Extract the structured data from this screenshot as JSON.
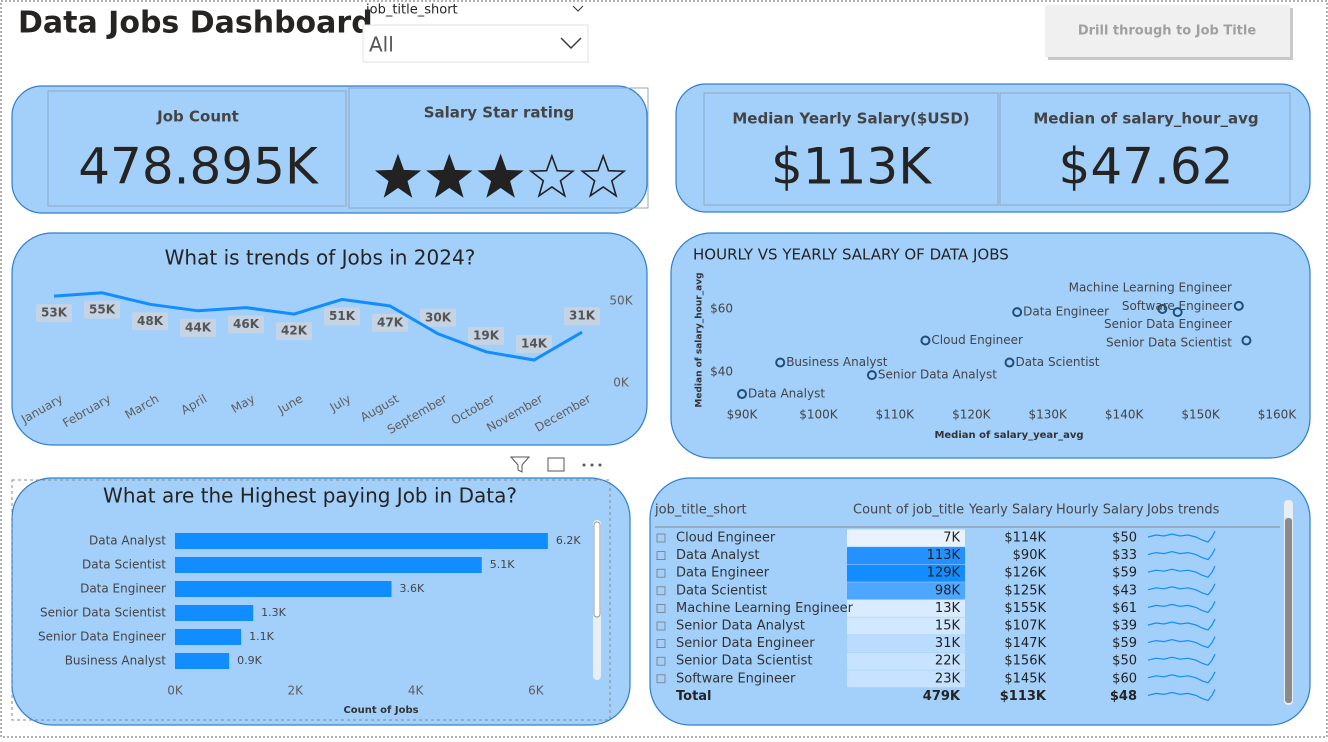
{
  "header": {
    "title": "Data Jobs Dashboard",
    "filter_label": "job_title_short",
    "filter_value": "All",
    "button": "Drill through to Job Title"
  },
  "cards": [
    {
      "title": "Job Count",
      "value": "478.895K"
    },
    {
      "title": "Salary Star rating",
      "stars": 3,
      "max_stars": 5
    },
    {
      "title": "Median Yearly Salary($USD)",
      "value": "$113K"
    },
    {
      "title": "Median of salary_hour_avg",
      "value": "$47.62"
    }
  ],
  "chart_data": [
    {
      "type": "line",
      "title": "What is trends of Jobs in 2024?",
      "categories": [
        "January",
        "February",
        "March",
        "April",
        "May",
        "June",
        "July",
        "August",
        "September",
        "October",
        "November",
        "December"
      ],
      "values": [
        53000,
        55000,
        48000,
        44000,
        46000,
        42000,
        51000,
        47000,
        30000,
        19000,
        14000,
        31000
      ],
      "value_labels": [
        "53K",
        "55K",
        "48K",
        "44K",
        "46K",
        "42K",
        "51K",
        "47K",
        "30K",
        "19K",
        "14K",
        "31K"
      ],
      "color": "#118dff",
      "ylim": [
        0,
        60000
      ],
      "yticks": [
        {
          "value": 0,
          "label": "0K"
        },
        {
          "value": 50000,
          "label": "50K"
        }
      ]
    },
    {
      "type": "scatter",
      "title": "HOURLY VS YEARLY SALARY OF DATA JOBS",
      "x_label": "Median of salary_year_avg",
      "y_label": "Median of salary_hour_avg",
      "labels": [
        "Data Analyst",
        "Business Analyst",
        "Senior Data Analyst",
        "Cloud Engineer",
        "Data Scientist",
        "Data Engineer",
        "Software Engineer",
        "Senior Data Engineer",
        "Machine Learning Engineer",
        "Senior Data Scientist"
      ],
      "x": [
        90000,
        95000,
        107000,
        114000,
        125000,
        126000,
        145000,
        147000,
        155000,
        156000
      ],
      "values": [
        33,
        43,
        39,
        50,
        43,
        59,
        60,
        59,
        61,
        50
      ],
      "color": "#1f4e79",
      "xlim": [
        90000,
        160000
      ],
      "xticks": [
        {
          "value": 90000,
          "label": "$90K"
        },
        {
          "value": 100000,
          "label": "$100K"
        },
        {
          "value": 110000,
          "label": "$110K"
        },
        {
          "value": 120000,
          "label": "$120K"
        },
        {
          "value": 130000,
          "label": "$130K"
        },
        {
          "value": 140000,
          "label": "$140K"
        },
        {
          "value": 150000,
          "label": "$150K"
        },
        {
          "value": 160000,
          "label": "$160K"
        }
      ],
      "ylim": [
        30,
        65
      ],
      "yticks": [
        {
          "value": 40,
          "label": "$40"
        },
        {
          "value": 60,
          "label": "$60"
        }
      ]
    },
    {
      "type": "bar",
      "orientation": "horizontal",
      "title": "What are the Highest paying Job in Data?",
      "categories": [
        "Data Analyst",
        "Data Scientist",
        "Data Engineer",
        "Senior Data Scientist",
        "Senior Data Engineer",
        "Business Analyst"
      ],
      "values": [
        6200,
        5100,
        3600,
        1300,
        1100,
        900
      ],
      "value_labels": [
        "6.2K",
        "5.1K",
        "3.6K",
        "1.3K",
        "1.1K",
        "0.9K"
      ],
      "color": "#118dff",
      "xlim": [
        0,
        7000
      ],
      "xticks": [
        {
          "value": 0,
          "label": "0K"
        },
        {
          "value": 2000,
          "label": "2K"
        },
        {
          "value": 4000,
          "label": "4K"
        },
        {
          "value": 6000,
          "label": "6K"
        }
      ],
      "x_label": "Count of Jobs"
    }
  ],
  "table": {
    "columns": [
      "job_title_short",
      "Count of job_title",
      "Yearly Salary",
      "Hourly Salary",
      "Jobs trends"
    ],
    "rows": [
      [
        "Cloud Engineer",
        "7K",
        "$114K",
        "$50"
      ],
      [
        "Data Analyst",
        "113K",
        "$90K",
        "$33"
      ],
      [
        "Data Engineer",
        "129K",
        "$126K",
        "$59"
      ],
      [
        "Data Scientist",
        "98K",
        "$125K",
        "$43"
      ],
      [
        "Machine Learning Engineer",
        "13K",
        "$155K",
        "$61"
      ],
      [
        "Senior Data Analyst",
        "15K",
        "$107K",
        "$39"
      ],
      [
        "Senior Data Engineer",
        "31K",
        "$147K",
        "$59"
      ],
      [
        "Senior Data Scientist",
        "22K",
        "$156K",
        "$50"
      ],
      [
        "Software Engineer",
        "23K",
        "$145K",
        "$60"
      ]
    ],
    "count_colors": [
      "#e8f3ff",
      "#2590ff",
      "#128cff",
      "#4da6ff",
      "#d9ecff",
      "#d1e8ff",
      "#b9dcff",
      "#c8e3ff",
      "#c6e2ff"
    ],
    "total": [
      "Total",
      "479K",
      "$113K",
      "$48"
    ]
  }
}
